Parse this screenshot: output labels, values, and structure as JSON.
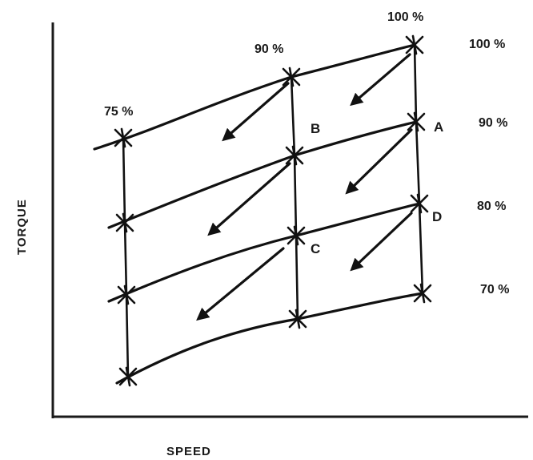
{
  "axes": {
    "x_label": "SPEED",
    "y_label": "TORQUE"
  },
  "speed_labels": [
    "75 %",
    "90 %",
    "100 %"
  ],
  "torque_labels": [
    "100 %",
    "90 %",
    "80 %",
    "70 %"
  ],
  "points": [
    "A",
    "B",
    "C",
    "D"
  ],
  "colors": {
    "ink": "#111111",
    "background": "#ffffff"
  }
}
